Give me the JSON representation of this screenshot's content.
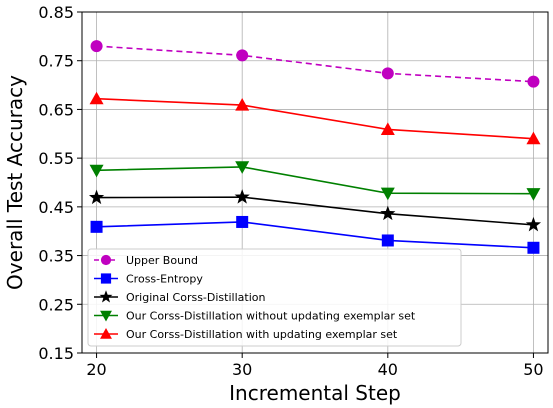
{
  "chart_data": {
    "type": "line",
    "title": "",
    "xlabel": "Incremental Step",
    "ylabel": "Overall Test Accuracy",
    "x": [
      20,
      30,
      40,
      50
    ],
    "xticks": [
      "20",
      "30",
      "40",
      "50"
    ],
    "xlim": [
      19,
      51
    ],
    "ylim": [
      0.15,
      0.85
    ],
    "yticks": [
      "0.15",
      "0.25",
      "0.35",
      "0.45",
      "0.55",
      "0.65",
      "0.75",
      "0.85"
    ],
    "grid": true,
    "legend_position": "lower-left",
    "series": [
      {
        "name": "Upper Bound",
        "values": [
          0.78,
          0.761,
          0.724,
          0.707
        ],
        "color": "#c000c0",
        "marker": "circle",
        "dashed": true
      },
      {
        "name": "Cross-Entropy",
        "values": [
          0.409,
          0.419,
          0.381,
          0.366
        ],
        "color": "#0000ff",
        "marker": "square",
        "dashed": false
      },
      {
        "name": "Original Corss-Distillation",
        "values": [
          0.469,
          0.47,
          0.436,
          0.413
        ],
        "color": "#000000",
        "marker": "star",
        "dashed": false
      },
      {
        "name": "Our Corss-Distillation without updating exemplar set",
        "values": [
          0.525,
          0.532,
          0.478,
          0.477
        ],
        "color": "#008000",
        "marker": "triangle-down",
        "dashed": false
      },
      {
        "name": "Our Corss-Distillation with updating exemplar set",
        "values": [
          0.672,
          0.659,
          0.609,
          0.59
        ],
        "color": "#ff0000",
        "marker": "triangle-up",
        "dashed": false
      }
    ]
  }
}
